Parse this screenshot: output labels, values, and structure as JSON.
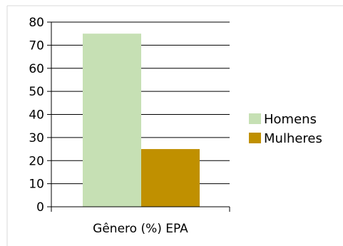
{
  "chart_data": {
    "type": "bar",
    "categories": [
      "Gênero (%) EPA"
    ],
    "series": [
      {
        "name": "Homens",
        "values": [
          75
        ],
        "color": "#c6e0b4"
      },
      {
        "name": "Mulheres",
        "values": [
          25
        ],
        "color": "#c09000"
      }
    ],
    "ylim": [
      0,
      80
    ],
    "yticks": [
      "0",
      "10",
      "20",
      "30",
      "40",
      "50",
      "60",
      "70",
      "80"
    ],
    "grid": true,
    "legend_position": "right",
    "title": "",
    "xlabel": "",
    "ylabel": ""
  }
}
